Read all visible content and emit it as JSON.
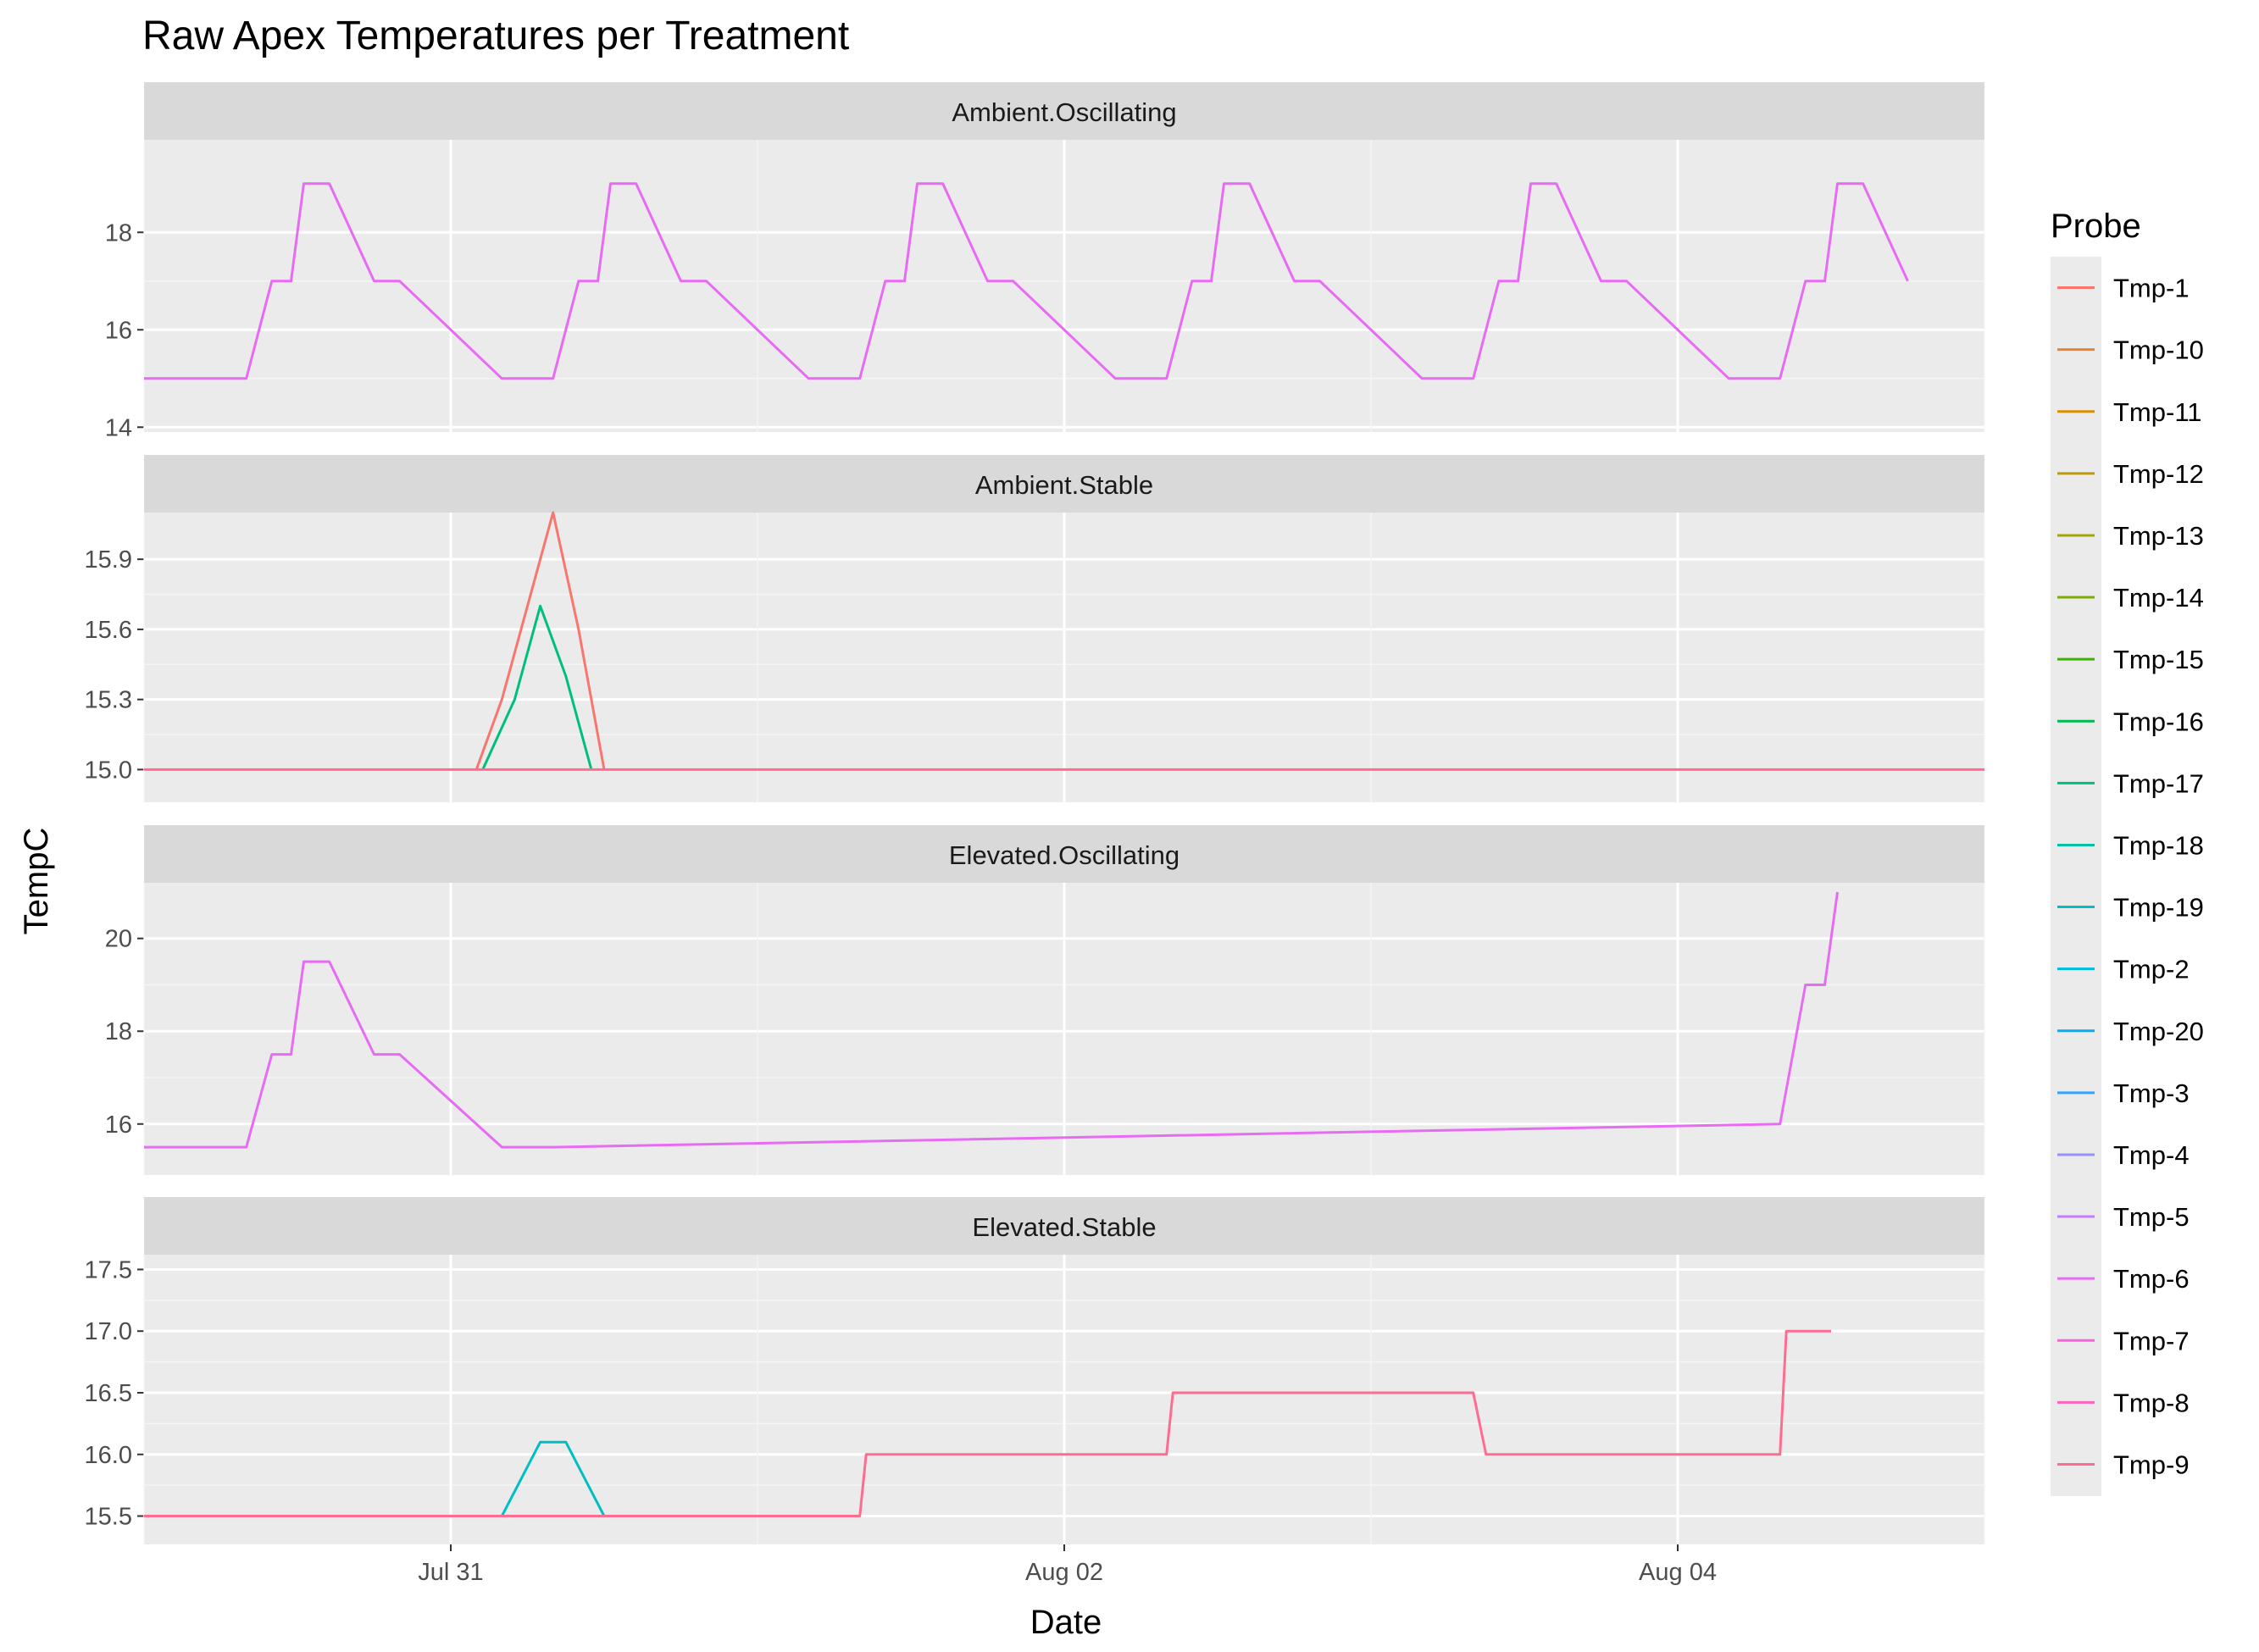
{
  "chart_data": {
    "type": "line",
    "title": "Raw Apex Temperatures per Treatment",
    "xlabel": "Date",
    "ylabel": "TempC",
    "x_range": [
      "2019-07-30T00:00",
      "2019-08-05T00:00"
    ],
    "x_ticks": [
      "Jul 31",
      "Aug 02",
      "Aug 04"
    ],
    "x_tick_values": [
      "2019-07-31",
      "2019-08-02",
      "2019-08-04"
    ],
    "grid": true,
    "legend": {
      "title": "Probe",
      "position": "right",
      "entries": [
        "Tmp-1",
        "Tmp-10",
        "Tmp-11",
        "Tmp-12",
        "Tmp-13",
        "Tmp-14",
        "Tmp-15",
        "Tmp-16",
        "Tmp-17",
        "Tmp-18",
        "Tmp-19",
        "Tmp-2",
        "Tmp-20",
        "Tmp-3",
        "Tmp-4",
        "Tmp-5",
        "Tmp-6",
        "Tmp-7",
        "Tmp-8",
        "Tmp-9"
      ],
      "colors": [
        "#F8766D",
        "#EA8331",
        "#D89000",
        "#C09B00",
        "#A3A500",
        "#7CAE00",
        "#39B600",
        "#00BB4E",
        "#00BF7D",
        "#00C1A3",
        "#00BFC4",
        "#00BAE0",
        "#00B0F6",
        "#35A2FF",
        "#9590FF",
        "#C77CFF",
        "#E76BF3",
        "#FA62DB",
        "#FF62BC",
        "#FF6C91"
      ]
    },
    "panels": [
      {
        "name": "Ambient.Oscillating",
        "ylim": [
          13.9,
          19.9
        ],
        "y_ticks": [
          14,
          16,
          18
        ],
        "y_tick_labels": [
          "14",
          "16",
          "18"
        ],
        "series": [
          {
            "probe": "Tmp-6",
            "x": [
              "2019-07-30T00:00",
              "2019-07-30T08:00",
              "2019-07-30T10:00",
              "2019-07-30T11:30",
              "2019-07-30T12:30",
              "2019-07-30T14:30",
              "2019-07-30T18:00",
              "2019-07-30T20:00",
              "2019-07-31T04:00",
              "2019-07-31T08:00",
              "2019-07-31T10:00",
              "2019-07-31T11:30",
              "2019-07-31T12:30",
              "2019-07-31T14:30",
              "2019-07-31T18:00",
              "2019-07-31T20:00",
              "2019-08-01T04:00",
              "2019-08-01T08:00",
              "2019-08-01T10:00",
              "2019-08-01T11:30",
              "2019-08-01T12:30",
              "2019-08-01T14:30",
              "2019-08-01T18:00",
              "2019-08-01T20:00",
              "2019-08-02T04:00",
              "2019-08-02T08:00",
              "2019-08-02T10:00",
              "2019-08-02T11:30",
              "2019-08-02T12:30",
              "2019-08-02T14:30",
              "2019-08-02T18:00",
              "2019-08-02T20:00",
              "2019-08-03T04:00",
              "2019-08-03T08:00",
              "2019-08-03T10:00",
              "2019-08-03T11:30",
              "2019-08-03T12:30",
              "2019-08-03T14:30",
              "2019-08-03T18:00",
              "2019-08-03T20:00",
              "2019-08-04T04:00",
              "2019-08-04T08:00",
              "2019-08-04T10:00",
              "2019-08-04T11:30",
              "2019-08-04T12:30",
              "2019-08-04T14:30",
              "2019-08-04T18:00"
            ],
            "y": [
              15.0,
              15.0,
              17.0,
              17.0,
              19.0,
              19.0,
              17.0,
              17.0,
              15.0,
              15.0,
              17.0,
              17.0,
              19.0,
              19.0,
              17.0,
              17.0,
              15.0,
              15.0,
              17.0,
              17.0,
              19.0,
              19.0,
              17.0,
              17.0,
              15.0,
              15.0,
              17.0,
              17.0,
              19.0,
              19.0,
              17.0,
              17.0,
              15.0,
              15.0,
              17.0,
              17.0,
              19.0,
              19.0,
              17.0,
              17.0,
              15.0,
              15.0,
              17.0,
              17.0,
              19.0,
              19.0,
              17.0
            ]
          }
        ]
      },
      {
        "name": "Ambient.Stable",
        "ylim": [
          14.86,
          16.1
        ],
        "y_ticks": [
          15.0,
          15.3,
          15.6,
          15.9
        ],
        "y_tick_labels": [
          "15.0",
          "15.3",
          "15.6",
          "15.9"
        ],
        "series": [
          {
            "probe": "Tmp-1",
            "x": [
              "2019-07-31T02:00",
              "2019-07-31T04:00",
              "2019-07-31T06:00",
              "2019-07-31T08:00",
              "2019-07-31T10:00",
              "2019-07-31T12:00"
            ],
            "y": [
              15.0,
              15.3,
              15.7,
              16.1,
              15.6,
              15.0
            ]
          },
          {
            "probe": "Tmp-17",
            "x": [
              "2019-07-31T02:30",
              "2019-07-31T05:00",
              "2019-07-31T07:00",
              "2019-07-31T09:00",
              "2019-07-31T11:00"
            ],
            "y": [
              15.0,
              15.3,
              15.7,
              15.4,
              15.0
            ]
          },
          {
            "probe": "Tmp-9",
            "x": [
              "2019-07-30T00:00",
              "2019-08-05T00:00"
            ],
            "y": [
              15.0,
              15.0
            ]
          }
        ]
      },
      {
        "name": "Elevated.Oscillating",
        "ylim": [
          14.9,
          21.2
        ],
        "y_ticks": [
          16,
          18,
          20
        ],
        "y_tick_labels": [
          "16",
          "18",
          "20"
        ],
        "series": [
          {
            "probe": "Tmp-6",
            "x": [
              "2019-07-30T00:00",
              "2019-07-30T08:00",
              "2019-07-30T10:00",
              "2019-07-30T11:30",
              "2019-07-30T12:30",
              "2019-07-30T14:30",
              "2019-07-30T18:00",
              "2019-07-30T20:00",
              "2019-07-31T04:00",
              "2019-07-31T08:00",
              "2019-08-04T08:00",
              "2019-08-04T10:00",
              "2019-08-04T11:30",
              "2019-08-04T12:30"
            ],
            "y": [
              15.5,
              15.5,
              17.5,
              17.5,
              19.5,
              19.5,
              17.5,
              17.5,
              15.5,
              15.5,
              16.0,
              19.0,
              19.0,
              21.0
            ]
          }
        ]
      },
      {
        "name": "Elevated.Stable",
        "ylim": [
          15.27,
          17.62
        ],
        "y_ticks": [
          15.5,
          16.0,
          16.5,
          17.0,
          17.5
        ],
        "y_tick_labels": [
          "15.5",
          "16.0",
          "16.5",
          "17.0",
          "17.5"
        ],
        "series": [
          {
            "probe": "Tmp-19",
            "x": [
              "2019-07-31T04:00",
              "2019-07-31T07:00",
              "2019-07-31T09:00",
              "2019-07-31T12:00"
            ],
            "y": [
              15.5,
              16.1,
              16.1,
              15.5
            ]
          },
          {
            "probe": "Tmp-9",
            "x": [
              "2019-07-30T00:00",
              "2019-08-01T08:00",
              "2019-08-01T08:30",
              "2019-08-02T08:00",
              "2019-08-02T08:30",
              "2019-08-03T08:00",
              "2019-08-03T09:00",
              "2019-08-04T08:00",
              "2019-08-04T08:30",
              "2019-08-04T12:00"
            ],
            "y": [
              15.5,
              15.5,
              16.0,
              16.0,
              16.5,
              16.5,
              16.0,
              16.0,
              17.0,
              17.0
            ]
          }
        ]
      }
    ]
  }
}
